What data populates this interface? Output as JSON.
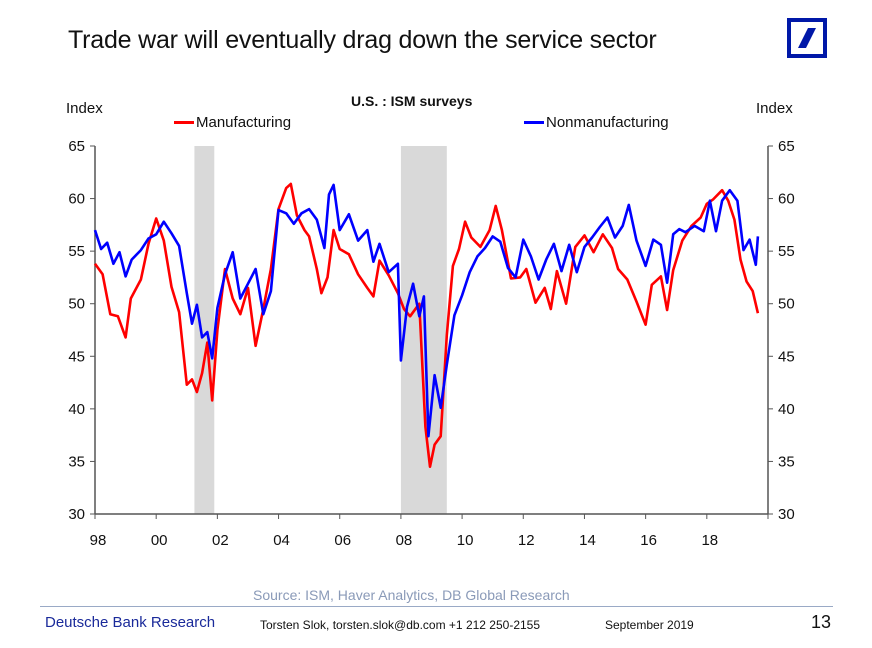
{
  "page": {
    "title": "Trade war will eventually drag down the service sector",
    "logo": "deutsche-bank-logo",
    "source": "Source: ISM, Haver Analytics, DB Global Research",
    "footer": {
      "brand": "Deutsche Bank Research",
      "author": "Torsten Slok, torsten.slok@db.com  +1 212 250-2155",
      "date": "September 2019",
      "page_number": "13"
    }
  },
  "chart_data": {
    "type": "line",
    "title": "U.S. : ISM surveys",
    "ylabel_left": "Index",
    "ylabel_right": "Index",
    "xlabel": "",
    "ylim": [
      30,
      65
    ],
    "xlim": [
      1998,
      2020
    ],
    "y_ticks": [
      30,
      35,
      40,
      45,
      50,
      55,
      60,
      65
    ],
    "x_tick_values": [
      1998,
      2000,
      2002,
      2004,
      2006,
      2008,
      2010,
      2012,
      2014,
      2016,
      2018
    ],
    "x_tick_labels": [
      "98",
      "00",
      "02",
      "04",
      "06",
      "08",
      "10",
      "12",
      "14",
      "16",
      "18"
    ],
    "grid": false,
    "legend": "top",
    "recessions": [
      [
        2001.25,
        2001.9
      ],
      [
        2008.0,
        2009.5
      ]
    ],
    "colors": {
      "Manufacturing": "#ff0000",
      "Nonmanufacturing": "#0000ff",
      "recession": "#d9d9d9"
    },
    "series": [
      {
        "name": "Manufacturing",
        "x": [
          1998.0,
          1998.25,
          1998.5,
          1998.75,
          1999.0,
          1999.17,
          1999.5,
          1999.75,
          2000.0,
          2000.25,
          2000.5,
          2000.75,
          2001.0,
          2001.17,
          2001.33,
          2001.5,
          2001.67,
          2001.83,
          2002.0,
          2002.25,
          2002.5,
          2002.75,
          2003.0,
          2003.25,
          2003.5,
          2003.75,
          2004.0,
          2004.25,
          2004.4,
          2004.6,
          2004.85,
          2005.0,
          2005.25,
          2005.4,
          2005.6,
          2005.8,
          2006.0,
          2006.3,
          2006.6,
          2006.9,
          2007.1,
          2007.3,
          2007.6,
          2007.9,
          2008.1,
          2008.3,
          2008.6,
          2008.8,
          2008.95,
          2009.1,
          2009.3,
          2009.5,
          2009.7,
          2009.9,
          2010.1,
          2010.3,
          2010.6,
          2010.9,
          2011.1,
          2011.3,
          2011.6,
          2011.9,
          2012.1,
          2012.4,
          2012.7,
          2012.9,
          2013.1,
          2013.4,
          2013.7,
          2014.0,
          2014.3,
          2014.6,
          2014.9,
          2015.1,
          2015.4,
          2015.7,
          2016.0,
          2016.2,
          2016.5,
          2016.7,
          2016.9,
          2017.2,
          2017.5,
          2017.8,
          2018.0,
          2018.2,
          2018.5,
          2018.7,
          2018.9,
          2019.1,
          2019.3,
          2019.5,
          2019.67
        ],
        "values": [
          53.8,
          52.8,
          49.0,
          48.8,
          46.8,
          50.5,
          52.3,
          55.7,
          58.1,
          56.0,
          51.6,
          49.2,
          42.3,
          42.8,
          41.6,
          43.4,
          46.3,
          40.8,
          47.5,
          53.3,
          50.5,
          49.0,
          51.5,
          46.0,
          49.5,
          53.3,
          59.0,
          61.0,
          61.4,
          58.4,
          57.0,
          56.4,
          53.3,
          51.0,
          52.5,
          57.0,
          55.2,
          54.7,
          52.8,
          51.5,
          50.7,
          54.1,
          52.7,
          51.0,
          49.5,
          48.8,
          50.0,
          38.3,
          34.5,
          36.6,
          37.4,
          47.0,
          53.6,
          55.2,
          57.8,
          56.3,
          55.4,
          57.0,
          59.3,
          57.0,
          52.4,
          52.5,
          53.3,
          50.1,
          51.5,
          49.5,
          53.1,
          50.0,
          55.4,
          56.5,
          54.9,
          56.6,
          55.3,
          53.3,
          52.3,
          50.2,
          48.0,
          51.8,
          52.6,
          49.4,
          53.2,
          56.0,
          57.4,
          58.2,
          59.5,
          59.9,
          60.8,
          59.8,
          58.0,
          54.2,
          52.1,
          51.2,
          49.1
        ]
      },
      {
        "name": "Nonmanufacturing",
        "x": [
          1998.0,
          1998.2,
          1998.4,
          1998.6,
          1998.8,
          1999.0,
          1999.2,
          1999.5,
          1999.75,
          2000.0,
          2000.25,
          2000.5,
          2000.75,
          2001.0,
          2001.17,
          2001.33,
          2001.5,
          2001.67,
          2001.83,
          2002.0,
          2002.25,
          2002.5,
          2002.75,
          2003.0,
          2003.25,
          2003.5,
          2003.75,
          2004.0,
          2004.25,
          2004.5,
          2004.75,
          2005.0,
          2005.25,
          2005.5,
          2005.65,
          2005.8,
          2006.0,
          2006.3,
          2006.6,
          2006.9,
          2007.1,
          2007.3,
          2007.6,
          2007.9,
          2008.0,
          2008.2,
          2008.4,
          2008.6,
          2008.75,
          2008.9,
          2009.1,
          2009.3,
          2009.5,
          2009.75,
          2010.0,
          2010.25,
          2010.5,
          2010.75,
          2011.0,
          2011.25,
          2011.5,
          2011.75,
          2012.0,
          2012.25,
          2012.5,
          2012.75,
          2013.0,
          2013.25,
          2013.5,
          2013.75,
          2014.0,
          2014.25,
          2014.5,
          2014.75,
          2015.0,
          2015.25,
          2015.45,
          2015.7,
          2016.0,
          2016.25,
          2016.5,
          2016.7,
          2016.9,
          2017.1,
          2017.3,
          2017.6,
          2017.9,
          2018.1,
          2018.3,
          2018.5,
          2018.75,
          2019.0,
          2019.2,
          2019.4,
          2019.6,
          2019.67
        ],
        "values": [
          57.0,
          55.2,
          55.8,
          53.8,
          54.9,
          52.6,
          54.2,
          55.1,
          56.2,
          56.6,
          57.8,
          56.7,
          55.5,
          51.0,
          48.1,
          49.9,
          46.8,
          47.3,
          44.8,
          49.6,
          52.8,
          54.9,
          50.5,
          51.9,
          53.3,
          49.0,
          51.2,
          58.9,
          58.6,
          57.6,
          58.6,
          59.0,
          58.0,
          55.3,
          60.4,
          61.3,
          57.0,
          58.5,
          56.0,
          57.0,
          54.0,
          55.7,
          53.0,
          53.8,
          44.6,
          49.7,
          51.9,
          48.8,
          50.7,
          37.4,
          43.2,
          40.1,
          44.2,
          48.9,
          50.8,
          53.0,
          54.5,
          55.3,
          56.4,
          55.9,
          53.4,
          52.5,
          56.1,
          54.5,
          52.3,
          54.2,
          55.7,
          53.1,
          55.6,
          53.0,
          55.4,
          56.3,
          57.3,
          58.2,
          56.3,
          57.4,
          59.4,
          56.0,
          53.6,
          56.1,
          55.6,
          52.0,
          56.6,
          57.1,
          56.8,
          57.4,
          56.9,
          59.8,
          56.9,
          59.8,
          60.8,
          59.8,
          55.1,
          56.1,
          53.7,
          56.4
        ]
      }
    ]
  }
}
